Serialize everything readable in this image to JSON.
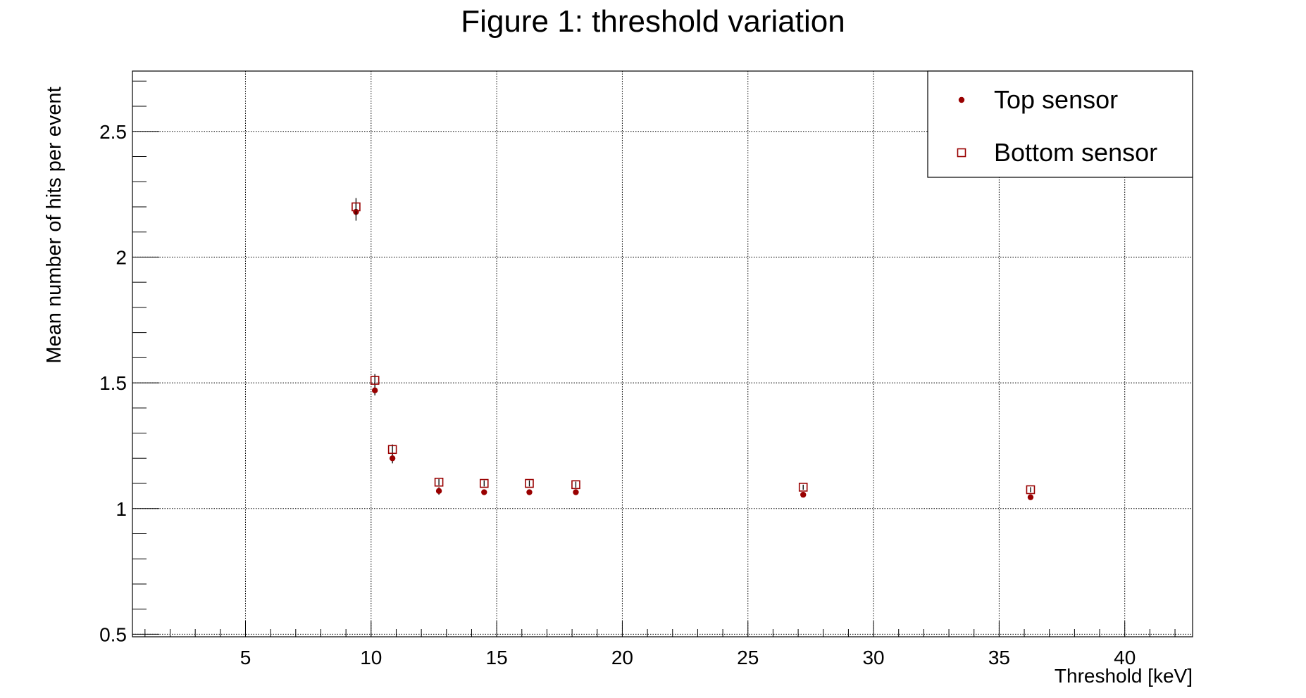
{
  "chart_data": {
    "type": "scatter",
    "title": "Figure 1: threshold variation",
    "xlabel": "Threshold [keV]",
    "ylabel": "Mean number of hits per event",
    "xlim": [
      0.5,
      42.7
    ],
    "ylim": [
      0.49,
      2.74
    ],
    "x_ticks": [
      5,
      10,
      15,
      20,
      25,
      30,
      35,
      40
    ],
    "x_tick_labels": [
      "5",
      "10",
      "15",
      "20",
      "25",
      "30",
      "35",
      "40"
    ],
    "y_ticks": [
      0.5,
      1,
      1.5,
      2,
      2.5
    ],
    "y_tick_labels": [
      "0.5",
      "1",
      "1.5",
      "2",
      "2.5"
    ],
    "grid": true,
    "legend_position": "top-right",
    "marker_color": "#990000",
    "series": [
      {
        "name": "Top sensor",
        "marker": "filled-circle",
        "x": [
          9.4,
          10.15,
          10.85,
          12.7,
          14.5,
          16.3,
          18.15,
          27.2,
          36.25
        ],
        "y": [
          2.18,
          1.47,
          1.2,
          1.07,
          1.065,
          1.065,
          1.065,
          1.055,
          1.045
        ],
        "yerr": [
          0.035,
          0.02,
          0.02,
          0.015,
          0.01,
          0.01,
          0.01,
          0.01,
          0.01
        ]
      },
      {
        "name": "Bottom sensor",
        "marker": "open-square",
        "x": [
          9.4,
          10.15,
          10.85,
          12.7,
          14.5,
          16.3,
          18.15,
          27.2,
          36.25
        ],
        "y": [
          2.2,
          1.51,
          1.235,
          1.105,
          1.1,
          1.1,
          1.095,
          1.085,
          1.075
        ],
        "yerr": [
          0.035,
          0.025,
          0.02,
          0.012,
          0.012,
          0.012,
          0.012,
          0.01,
          0.01
        ]
      }
    ]
  }
}
